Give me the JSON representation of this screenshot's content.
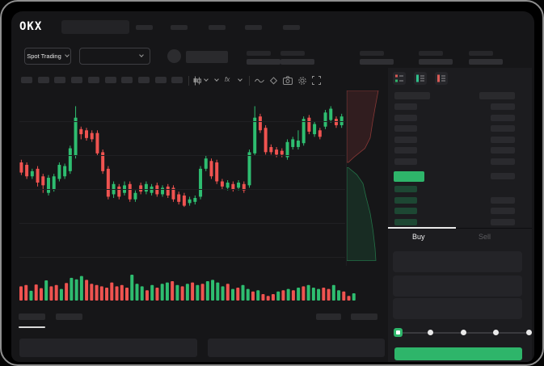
{
  "app": {
    "brand": "OKX"
  },
  "colors": {
    "candle_green": "#2ebd70",
    "candle_red": "#ef5350",
    "accent_green": "#2eb56a",
    "bid_green_dim": "#1d4733",
    "screen_bg": "#161618",
    "panel_bg": "#1c1c1f"
  },
  "top_nav": {
    "brand": "OKX",
    "nav_placeholder_count": 5
  },
  "market_bar": {
    "market_selector_label": "Spot Trading",
    "stat_group_count": 5
  },
  "toolbar": {
    "interval_placeholder_count": 10,
    "icons": [
      "candle-style-icon",
      "candle-style-chevron-icon",
      "interval-chevron-icon",
      "indicators-fx-icon",
      "indicators-chevron-icon",
      "line-tool-icon",
      "compare-icon",
      "camera-icon",
      "settings-icon",
      "fullscreen-icon"
    ]
  },
  "order_book": {
    "view_icons": [
      "book-combined-icon",
      "book-bids-icon",
      "book-asks-icon"
    ],
    "ask_row_count": 6,
    "last_price_row": {
      "highlight": true,
      "has_amount": true
    },
    "bid_rows_amount_flags": [
      false,
      true,
      true,
      true
    ],
    "tabs": {
      "buy": "Buy",
      "sell": "Sell",
      "active": "Buy"
    },
    "form_field_count": 3,
    "slider": {
      "stops_percent": [
        0,
        25,
        50,
        75,
        100
      ],
      "active_index": 0
    }
  },
  "bottom_area": {
    "left_tab_count": 2,
    "right_tab_count": 2,
    "active_tab_index": 0,
    "panel_count": 2
  },
  "chart_data": [
    {
      "type": "candlestick",
      "title": "",
      "note": "values are normalized price positions, percent from top of pane: [direction, body_top, body_bottom, wick_top, wick_bottom]",
      "gridlines_pct": [
        16.5,
        35.8,
        55.0,
        74.3,
        93.6
      ],
      "candles": [
        [
          "r",
          39.9,
          45.7,
          38.4,
          47.1
        ],
        [
          "r",
          41.3,
          47.8,
          39.9,
          49.3
        ],
        [
          "g",
          44.9,
          47.8,
          43.5,
          49.3
        ],
        [
          "r",
          43.5,
          51.4,
          42.0,
          53.6
        ],
        [
          "r",
          47.8,
          52.9,
          46.4,
          57.2
        ],
        [
          "g",
          48.6,
          57.2,
          47.1,
          58.7
        ],
        [
          "g",
          47.8,
          55.1,
          46.4,
          56.5
        ],
        [
          "g",
          41.3,
          49.3,
          39.9,
          50.7
        ],
        [
          "g",
          42.0,
          47.8,
          40.6,
          49.3
        ],
        [
          "g",
          31.9,
          44.9,
          30.4,
          46.4
        ],
        [
          "g",
          14.5,
          36.2,
          8.0,
          37.7
        ],
        [
          "r",
          21.0,
          23.9,
          19.6,
          26.8
        ],
        [
          "r",
          21.7,
          26.1,
          20.3,
          27.5
        ],
        [
          "r",
          23.2,
          26.8,
          21.7,
          28.3
        ],
        [
          "r",
          23.2,
          34.8,
          21.7,
          36.2
        ],
        [
          "r",
          34.1,
          44.9,
          32.6,
          46.4
        ],
        [
          "r",
          43.5,
          59.4,
          42.0,
          60.9
        ],
        [
          "g",
          52.2,
          58.0,
          50.7,
          60.1
        ],
        [
          "r",
          53.6,
          59.4,
          52.2,
          60.9
        ],
        [
          "g",
          52.9,
          57.2,
          50.7,
          58.7
        ],
        [
          "r",
          52.2,
          60.9,
          50.7,
          62.3
        ],
        [
          "g",
          57.2,
          60.9,
          55.8,
          62.3
        ],
        [
          "r",
          52.9,
          56.5,
          51.4,
          58.0
        ],
        [
          "g",
          52.2,
          56.5,
          50.7,
          58.0
        ],
        [
          "g",
          53.6,
          57.2,
          52.2,
          58.7
        ],
        [
          "r",
          52.9,
          58.0,
          51.4,
          59.4
        ],
        [
          "g",
          54.3,
          58.0,
          52.9,
          59.4
        ],
        [
          "r",
          53.6,
          58.7,
          52.2,
          60.1
        ],
        [
          "r",
          54.3,
          60.9,
          52.9,
          62.3
        ],
        [
          "r",
          58.0,
          62.3,
          56.5,
          63.8
        ],
        [
          "r",
          58.7,
          64.5,
          57.2,
          65.2
        ],
        [
          "g",
          60.9,
          63.0,
          59.4,
          64.5
        ],
        [
          "g",
          60.1,
          62.3,
          58.7,
          63.8
        ],
        [
          "g",
          43.5,
          59.4,
          42.0,
          60.9
        ],
        [
          "g",
          37.7,
          43.5,
          36.2,
          44.9
        ],
        [
          "r",
          39.1,
          47.8,
          37.7,
          49.3
        ],
        [
          "r",
          39.9,
          50.7,
          38.4,
          52.2
        ],
        [
          "r",
          50.7,
          53.6,
          49.3,
          55.1
        ],
        [
          "g",
          51.4,
          54.3,
          50.0,
          55.8
        ],
        [
          "r",
          52.2,
          55.1,
          50.7,
          56.5
        ],
        [
          "g",
          51.4,
          54.3,
          50.0,
          55.8
        ],
        [
          "r",
          52.2,
          55.8,
          50.7,
          57.2
        ],
        [
          "g",
          34.1,
          52.9,
          32.6,
          54.3
        ],
        [
          "g",
          14.5,
          34.8,
          8.0,
          36.2
        ],
        [
          "r",
          13.8,
          21.7,
          12.3,
          23.2
        ],
        [
          "r",
          20.3,
          34.1,
          18.8,
          35.5
        ],
        [
          "r",
          31.2,
          34.1,
          29.7,
          35.5
        ],
        [
          "r",
          32.6,
          35.5,
          31.2,
          37.0
        ],
        [
          "r",
          33.3,
          35.5,
          31.9,
          37.0
        ],
        [
          "g",
          28.3,
          37.0,
          26.8,
          38.4
        ],
        [
          "g",
          26.8,
          31.2,
          25.4,
          32.6
        ],
        [
          "g",
          27.5,
          31.2,
          21.7,
          32.6
        ],
        [
          "g",
          15.2,
          29.0,
          13.8,
          30.4
        ],
        [
          "r",
          14.5,
          22.5,
          13.0,
          23.9
        ],
        [
          "g",
          18.1,
          23.9,
          16.7,
          25.4
        ],
        [
          "r",
          21.7,
          25.4,
          20.3,
          26.8
        ],
        [
          "g",
          11.6,
          19.6,
          10.1,
          21.0
        ],
        [
          "g",
          9.4,
          15.9,
          8.0,
          17.4
        ],
        [
          "r",
          15.2,
          18.8,
          13.8,
          20.3
        ],
        [
          "g",
          13.8,
          18.8,
          12.3,
          20.3
        ]
      ]
    },
    {
      "type": "bar",
      "title": "volume",
      "note": "[direction, height_percent_of_pane]",
      "bars": [
        [
          "r",
          55
        ],
        [
          "r",
          60
        ],
        [
          "g",
          38
        ],
        [
          "r",
          62
        ],
        [
          "r",
          48
        ],
        [
          "g",
          78
        ],
        [
          "r",
          55
        ],
        [
          "r",
          60
        ],
        [
          "g",
          45
        ],
        [
          "r",
          68
        ],
        [
          "g",
          88
        ],
        [
          "g",
          82
        ],
        [
          "g",
          95
        ],
        [
          "r",
          80
        ],
        [
          "r",
          65
        ],
        [
          "r",
          60
        ],
        [
          "r",
          55
        ],
        [
          "r",
          50
        ],
        [
          "r",
          70
        ],
        [
          "r",
          55
        ],
        [
          "r",
          60
        ],
        [
          "r",
          50
        ],
        [
          "g",
          100
        ],
        [
          "g",
          65
        ],
        [
          "g",
          55
        ],
        [
          "r",
          40
        ],
        [
          "g",
          60
        ],
        [
          "r",
          50
        ],
        [
          "g",
          65
        ],
        [
          "g",
          70
        ],
        [
          "r",
          75
        ],
        [
          "g",
          60
        ],
        [
          "r",
          55
        ],
        [
          "g",
          65
        ],
        [
          "r",
          70
        ],
        [
          "g",
          60
        ],
        [
          "r",
          65
        ],
        [
          "g",
          75
        ],
        [
          "g",
          80
        ],
        [
          "g",
          70
        ],
        [
          "g",
          55
        ],
        [
          "r",
          65
        ],
        [
          "g",
          45
        ],
        [
          "r",
          50
        ],
        [
          "g",
          60
        ],
        [
          "g",
          45
        ],
        [
          "r",
          35
        ],
        [
          "g",
          40
        ],
        [
          "r",
          25
        ],
        [
          "r",
          18
        ],
        [
          "r",
          25
        ],
        [
          "g",
          35
        ],
        [
          "r",
          40
        ],
        [
          "g",
          45
        ],
        [
          "r",
          40
        ],
        [
          "g",
          50
        ],
        [
          "r",
          55
        ],
        [
          "g",
          60
        ],
        [
          "g",
          50
        ],
        [
          "g",
          45
        ],
        [
          "r",
          50
        ],
        [
          "r",
          45
        ],
        [
          "g",
          60
        ],
        [
          "g",
          40
        ],
        [
          "r",
          35
        ],
        [
          "r",
          18
        ],
        [
          "g",
          28
        ]
      ]
    },
    {
      "type": "area",
      "title": "depth",
      "note": "vertical depth ladder; points are [x_fraction_of_width, y_fraction_of_height]",
      "asks_curve": [
        [
          0.78,
          0.0
        ],
        [
          0.7,
          0.1
        ],
        [
          0.64,
          0.18
        ],
        [
          0.58,
          0.27
        ],
        [
          0.45,
          0.33
        ],
        [
          0.18,
          0.38
        ],
        [
          0.04,
          0.41
        ]
      ],
      "bids_curve": [
        [
          0.04,
          0.44
        ],
        [
          0.25,
          0.48
        ],
        [
          0.4,
          0.53
        ],
        [
          0.48,
          0.61
        ],
        [
          0.58,
          0.7
        ],
        [
          0.65,
          0.8
        ],
        [
          0.7,
          0.9
        ],
        [
          0.72,
          0.97
        ]
      ]
    }
  ]
}
